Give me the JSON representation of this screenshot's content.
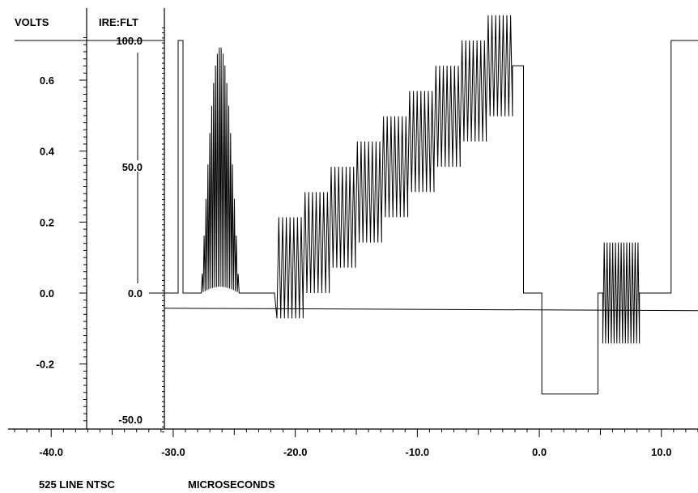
{
  "chart_data": {
    "type": "line",
    "title": "",
    "footer": {
      "standard": "525 LINE NTSC",
      "units": "MICROSECONDS"
    },
    "x_axis": {
      "label": "MICROSECONDS",
      "range": [
        -43,
        13
      ],
      "tick_labels": [
        "-40.0",
        "-30.0",
        "-20.0",
        "-10.0",
        "0.0",
        "10.0"
      ],
      "tick_values": [
        -40,
        -30,
        -20,
        -10,
        0,
        10
      ]
    },
    "volts_axis": {
      "label": "VOLTS",
      "range": [
        -0.36,
        0.74
      ],
      "tick_labels": [
        "0.6",
        "0.4",
        "0.2",
        "0.0",
        "-0.2"
      ],
      "tick_values": [
        0.6,
        0.4,
        0.2,
        0.0,
        -0.2
      ]
    },
    "ire_axis": {
      "label": "IRE:FLT",
      "range": [
        -53,
        104
      ],
      "tick_labels": [
        "100.0",
        "50.0",
        "0.0",
        "-50.0"
      ],
      "tick_values": [
        100,
        50,
        0,
        -50
      ]
    },
    "reference_line_ire": -6,
    "grid": false,
    "series": [
      {
        "signal_segments_ire": [
          {
            "from": -32,
            "to": -29.6,
            "level": 0
          },
          {
            "pulse_from": -29.6,
            "pulse_to": -29.2,
            "level": 100
          },
          {
            "from": -29.2,
            "to": -27.7,
            "level": 0
          },
          {
            "burst_from": -27.7,
            "burst_to": -24.6,
            "center": 50,
            "max_amplitude": 50
          },
          {
            "from": -24.6,
            "to": -21.7,
            "level": 0
          },
          {
            "steps_from": -21.5,
            "steps_to": -2.2,
            "step_centers": [
              10,
              20,
              30,
              40,
              50,
              60,
              70,
              80,
              90
            ],
            "step_amplitude": 20
          },
          {
            "from": -2.2,
            "to": -1.3,
            "level": 90
          },
          {
            "from": -1.3,
            "to": 0.2,
            "level": 0
          },
          {
            "from": 0.2,
            "to": 4.8,
            "level": -40
          },
          {
            "from": 4.8,
            "to": 5.2,
            "level": 0
          },
          {
            "burst_from": 5.2,
            "burst_to": 8.2,
            "center": 0,
            "amplitude": 20
          },
          {
            "from": 8.2,
            "to": 10.8,
            "level": 0
          },
          {
            "from": 10.8,
            "to": 13,
            "level": 100
          }
        ]
      }
    ]
  }
}
